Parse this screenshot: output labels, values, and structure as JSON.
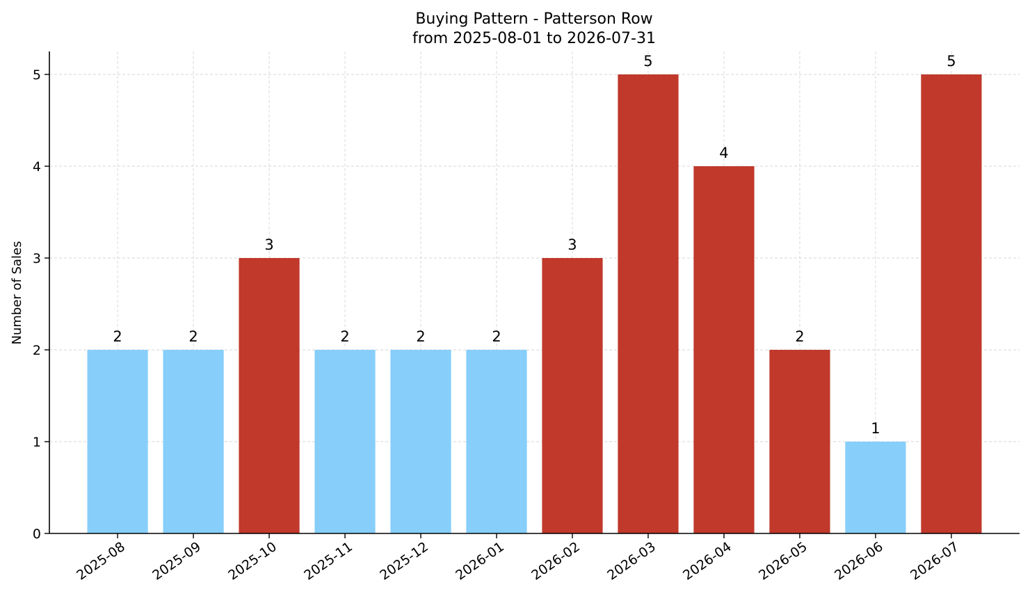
{
  "chart_data": {
    "type": "bar",
    "title": "Buying Pattern - Patterson Row",
    "subtitle": "from 2025-08-01 to 2026-07-31",
    "xlabel": "",
    "ylabel": "Number of Sales",
    "categories": [
      "2025-08",
      "2025-09",
      "2025-10",
      "2025-11",
      "2025-12",
      "2026-01",
      "2026-02",
      "2026-03",
      "2026-04",
      "2026-05",
      "2026-06",
      "2026-07"
    ],
    "values": [
      2,
      2,
      3,
      2,
      2,
      2,
      3,
      5,
      4,
      2,
      1,
      5
    ],
    "bar_colors": [
      "#87CEFA",
      "#87CEFA",
      "#C0392B",
      "#87CEFA",
      "#87CEFA",
      "#87CEFA",
      "#C0392B",
      "#C0392B",
      "#C0392B",
      "#C0392B",
      "#87CEFA",
      "#C0392B"
    ],
    "ylim": [
      0,
      5.25
    ],
    "yticks": [
      0,
      1,
      2,
      3,
      4,
      5
    ],
    "grid": true,
    "data_labels": true
  }
}
